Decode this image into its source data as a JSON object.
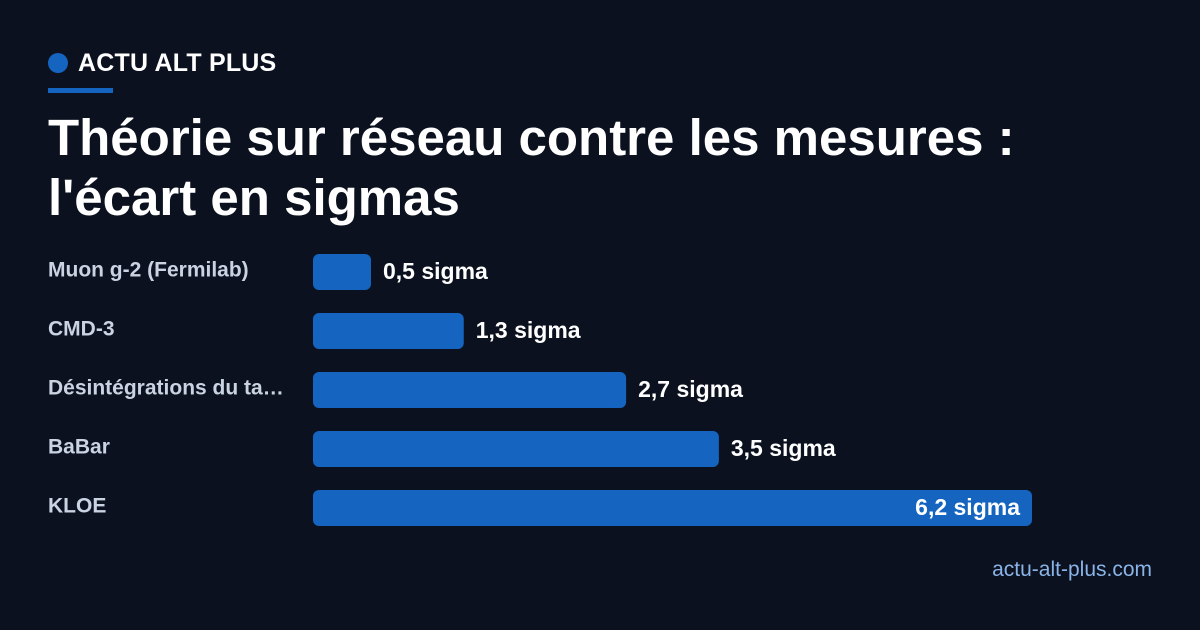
{
  "brand": {
    "name": "ACTU ALT PLUS",
    "accent_color": "#1565c0"
  },
  "header": {
    "title": "Théorie sur réseau contre les mesures : l'écart en sigmas"
  },
  "chart_data": {
    "type": "bar",
    "orientation": "horizontal",
    "title": "Théorie sur réseau contre les mesures : l'écart en sigmas",
    "categories": [
      "Muon g-2 (Fermilab)",
      "CMD-3",
      "Désintégrations du ta…",
      "BaBar",
      "KLOE"
    ],
    "values": [
      0.5,
      1.3,
      2.7,
      3.5,
      6.2
    ],
    "value_labels": [
      "0,5 sigma",
      "1,3 sigma",
      "2,7 sigma",
      "3,5 sigma",
      "6,2 sigma"
    ],
    "xlim": [
      0,
      6.2
    ],
    "bar_color": "#1565c0",
    "grid": false,
    "legend": "none"
  },
  "footer": {
    "site": "actu-alt-plus.com"
  }
}
